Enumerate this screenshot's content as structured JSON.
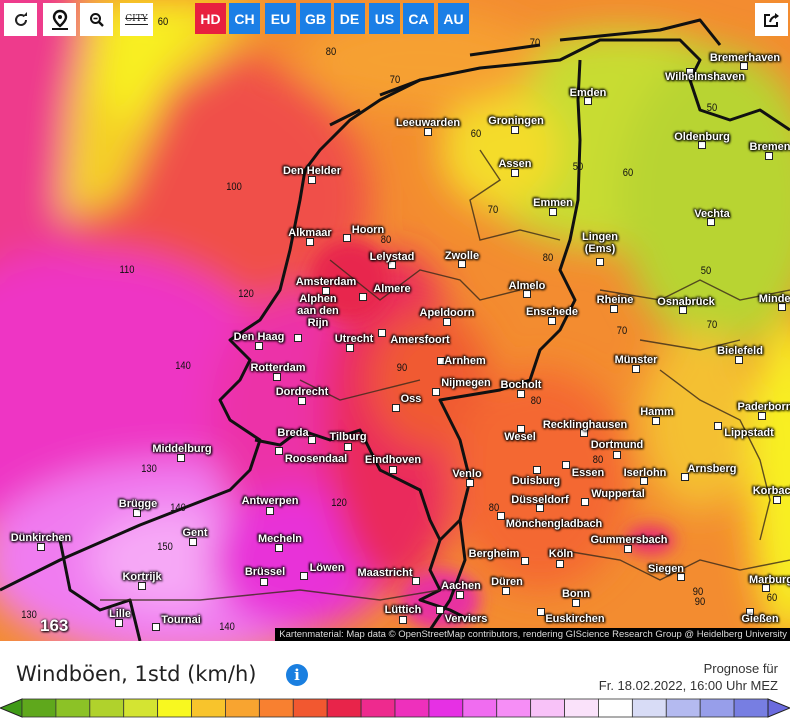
{
  "toolbar": {
    "buttons": [
      {
        "name": "reload",
        "icon": "reload-icon"
      },
      {
        "name": "location",
        "icon": "map-pin-icon"
      },
      {
        "name": "zoom-out",
        "icon": "zoom-out-icon"
      },
      {
        "name": "city-toggle",
        "icon": "city-labels-icon",
        "label": "CITY"
      }
    ],
    "regions": [
      {
        "label": "HD",
        "active": true
      },
      {
        "label": "CH"
      },
      {
        "label": "EU"
      },
      {
        "label": "GB"
      },
      {
        "label": "DE"
      },
      {
        "label": "US"
      },
      {
        "label": "CA"
      },
      {
        "label": "AU"
      }
    ],
    "share_icon": "share-icon"
  },
  "colors": {
    "active_region": "#e8203f",
    "region": "#1b7fe6",
    "info": "#1a7fe0"
  },
  "map": {
    "cities": [
      "Bremerhaven",
      "Wilhelmshaven",
      "Emden",
      "Leeuwarden",
      "Groningen",
      "Oldenburg",
      "Bremen",
      "Den Helder",
      "Assen",
      "Emmen",
      "Vechta",
      "Alkmaar",
      "Hoorn",
      "Lelystad",
      "Zwolle",
      "Lingen\n(Ems)",
      "Amsterdam",
      "Almere",
      "Almelo",
      "Rheine",
      "Osnabrück",
      "Minden",
      "Alphen\naan den\nRijn",
      "Apeldoorn",
      "Enschede",
      "Den Haag",
      "Utrecht",
      "Amersfoort",
      "Arnhem",
      "Münster",
      "Bielefeld",
      "Rotterdam",
      "Nijmegen",
      "Bocholt",
      "Dordrecht",
      "Oss",
      "Hamm",
      "Paderborn",
      "Recklinghausen",
      "Lippstadt",
      "Breda",
      "Tilburg",
      "Wesel",
      "Middelburg",
      "Dortmund",
      "Roosendaal",
      "Eindhoven",
      "Essen",
      "Iserlohn",
      "Arnsberg",
      "Venlo",
      "Duisburg",
      "Korbach",
      "Wuppertal",
      "Düsseldorf",
      "Brügge",
      "Antwerpen",
      "Mönchengladbach",
      "Dünkirchen",
      "Gent",
      "Mecheln",
      "Gummersbach",
      "Bergheim",
      "Köln",
      "Löwen",
      "Brüssel",
      "Maastricht",
      "Siegen",
      "Aachen",
      "Düren",
      "Kortrijk",
      "Bonn",
      "Marburg",
      "Lille",
      "Tournai",
      "Lüttich",
      "Verviers",
      "Euskirchen",
      "Gießen"
    ],
    "isolines": [
      "60",
      "80",
      "70",
      "70",
      "60",
      "50",
      "60",
      "50",
      "100",
      "70",
      "80",
      "80",
      "110",
      "120",
      "50",
      "70",
      "70",
      "140",
      "90",
      "80",
      "80",
      "130",
      "140",
      "80",
      "150",
      "120",
      "90",
      "90",
      "60",
      "130",
      "140"
    ],
    "max_value": "163",
    "attribution": "Kartenmaterial: Map data © OpenStreetMap contributors, rendering GIScience Research Group @ Heidelberg University"
  },
  "legend": {
    "title": "Windböen, 1std (km/h)",
    "info_icon": "info-icon",
    "forecast_label": "Prognose für",
    "forecast_time": "Fr. 18.02.2022, 16:00 Uhr MEZ",
    "scale_colors": [
      "#3f9a16",
      "#5fa81c",
      "#8cc226",
      "#b0d22c",
      "#d4e432",
      "#f8f820",
      "#f8c42c",
      "#f8a430",
      "#f88030",
      "#f25830",
      "#e8244a",
      "#ee2a8e",
      "#ee30bc",
      "#e630e4",
      "#f06cf0",
      "#f68ef6",
      "#f8c2f8",
      "#fae2fa",
      "#ffffff",
      "#d8dcf6",
      "#b4baf0",
      "#979eea",
      "#777ee2",
      "#6a6ade"
    ]
  }
}
